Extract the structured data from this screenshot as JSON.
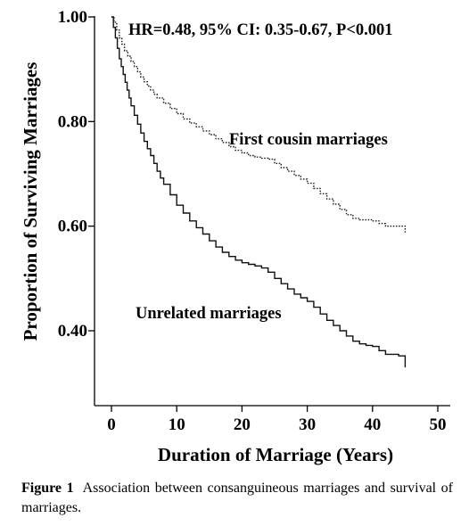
{
  "chart_data": {
    "type": "line",
    "subtype": "kaplan-meier step",
    "title": "",
    "annotation": "HR=0.48, 95% CI: 0.35-0.67, P<0.001",
    "xlabel": "Duration of Marriage (Years)",
    "ylabel": "Proportion of Surviving Marriages",
    "xlim": [
      -2,
      52
    ],
    "ylim": [
      0.3,
      1.0
    ],
    "x_ticks": [
      0,
      10,
      20,
      30,
      40,
      50
    ],
    "x_tick_labels": [
      "0",
      "10",
      "20",
      "30",
      "40",
      "50"
    ],
    "y_ticks": [
      0.4,
      0.6,
      0.8,
      1.0
    ],
    "y_tick_labels": [
      "0.40",
      "0.60",
      "0.80",
      "1.00"
    ],
    "grid": false,
    "legend": "none",
    "series": [
      {
        "label": "First cousin marriages",
        "line_style": "dotted",
        "points": [
          [
            0,
            1.0
          ],
          [
            0.4,
            0.99
          ],
          [
            0.8,
            0.975
          ],
          [
            1.2,
            0.96
          ],
          [
            1.6,
            0.948
          ],
          [
            2,
            0.935
          ],
          [
            2.5,
            0.925
          ],
          [
            3,
            0.915
          ],
          [
            3.5,
            0.905
          ],
          [
            4,
            0.895
          ],
          [
            4.5,
            0.885
          ],
          [
            5,
            0.876
          ],
          [
            5.5,
            0.868
          ],
          [
            6,
            0.86
          ],
          [
            6.5,
            0.852
          ],
          [
            7,
            0.845
          ],
          [
            8,
            0.835
          ],
          [
            9,
            0.825
          ],
          [
            10,
            0.815
          ],
          [
            11,
            0.805
          ],
          [
            12,
            0.797
          ],
          [
            13,
            0.79
          ],
          [
            14,
            0.782
          ],
          [
            15,
            0.775
          ],
          [
            16,
            0.767
          ],
          [
            17,
            0.76
          ],
          [
            18,
            0.752
          ],
          [
            19,
            0.745
          ],
          [
            20,
            0.74
          ],
          [
            21,
            0.735
          ],
          [
            22,
            0.732
          ],
          [
            23,
            0.73
          ],
          [
            24,
            0.728
          ],
          [
            25,
            0.72
          ],
          [
            26,
            0.712
          ],
          [
            27,
            0.705
          ],
          [
            28,
            0.697
          ],
          [
            29,
            0.69
          ],
          [
            30,
            0.682
          ],
          [
            31,
            0.672
          ],
          [
            32,
            0.662
          ],
          [
            33,
            0.652
          ],
          [
            34,
            0.642
          ],
          [
            35,
            0.632
          ],
          [
            36,
            0.622
          ],
          [
            37,
            0.615
          ],
          [
            38,
            0.612
          ],
          [
            40,
            0.61
          ],
          [
            41,
            0.605
          ],
          [
            42,
            0.6
          ],
          [
            45,
            0.598
          ],
          [
            45,
            0.585
          ]
        ]
      },
      {
        "label": "Unrelated marriages",
        "line_style": "solid",
        "points": [
          [
            0,
            1.0
          ],
          [
            0.3,
            0.98
          ],
          [
            0.6,
            0.96
          ],
          [
            0.9,
            0.94
          ],
          [
            1.2,
            0.92
          ],
          [
            1.5,
            0.905
          ],
          [
            1.8,
            0.89
          ],
          [
            2.1,
            0.875
          ],
          [
            2.4,
            0.86
          ],
          [
            2.7,
            0.845
          ],
          [
            3,
            0.83
          ],
          [
            3.5,
            0.812
          ],
          [
            4,
            0.795
          ],
          [
            4.5,
            0.778
          ],
          [
            5,
            0.762
          ],
          [
            5.5,
            0.748
          ],
          [
            6,
            0.735
          ],
          [
            6.5,
            0.72
          ],
          [
            7,
            0.705
          ],
          [
            7.5,
            0.692
          ],
          [
            8,
            0.68
          ],
          [
            9,
            0.66
          ],
          [
            10,
            0.64
          ],
          [
            11,
            0.625
          ],
          [
            12,
            0.61
          ],
          [
            13,
            0.597
          ],
          [
            14,
            0.585
          ],
          [
            15,
            0.572
          ],
          [
            16,
            0.56
          ],
          [
            17,
            0.55
          ],
          [
            18,
            0.542
          ],
          [
            19,
            0.535
          ],
          [
            20,
            0.53
          ],
          [
            21,
            0.527
          ],
          [
            22,
            0.524
          ],
          [
            23,
            0.52
          ],
          [
            24,
            0.512
          ],
          [
            25,
            0.5
          ],
          [
            26,
            0.49
          ],
          [
            27,
            0.48
          ],
          [
            28,
            0.47
          ],
          [
            29,
            0.463
          ],
          [
            30,
            0.456
          ],
          [
            31,
            0.445
          ],
          [
            32,
            0.432
          ],
          [
            33,
            0.42
          ],
          [
            34,
            0.41
          ],
          [
            35,
            0.4
          ],
          [
            36,
            0.39
          ],
          [
            37,
            0.38
          ],
          [
            38,
            0.375
          ],
          [
            39,
            0.372
          ],
          [
            40,
            0.37
          ],
          [
            41,
            0.362
          ],
          [
            42,
            0.355
          ],
          [
            44,
            0.352
          ],
          [
            45,
            0.35
          ],
          [
            45,
            0.33
          ]
        ]
      }
    ]
  },
  "caption": {
    "label": "Figure 1",
    "text": "Association between consanguineous marriages and survival of marriages."
  }
}
